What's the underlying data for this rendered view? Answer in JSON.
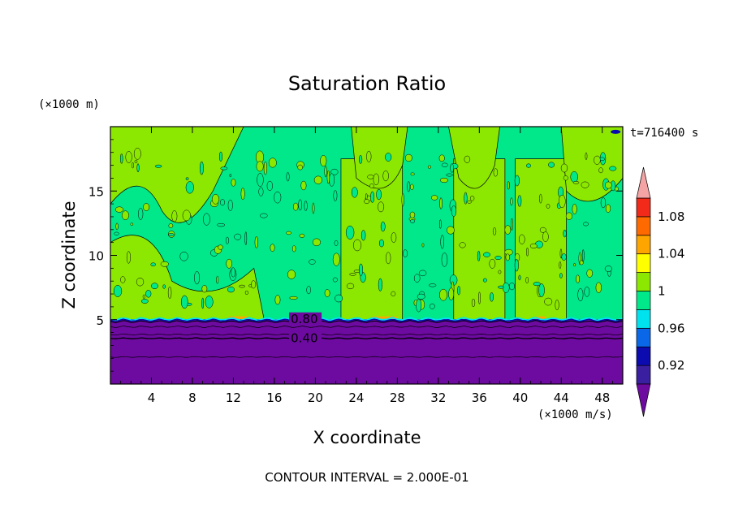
{
  "chart_data": {
    "type": "heatmap",
    "title": "Saturation Ratio",
    "xlabel": "X coordinate",
    "ylabel": "Z coordinate",
    "x_unit": "(×1000 m/s)",
    "y_unit": "(×1000 m)",
    "time_label": "t=716400 s",
    "footnote": "CONTOUR INTERVAL = 2.000E-01",
    "xlim": [
      0,
      50
    ],
    "ylim": [
      0,
      20
    ],
    "x_ticks": [
      4,
      8,
      12,
      16,
      20,
      24,
      28,
      32,
      36,
      40,
      44,
      48
    ],
    "y_ticks": [
      5,
      10,
      15
    ],
    "contour_labels": [
      {
        "text": "0.80",
        "x": 17.6,
        "z": 5.0
      },
      {
        "text": "0.40",
        "x": 17.6,
        "z": 3.5
      }
    ],
    "colorbar": {
      "levels": [
        0.9,
        0.92,
        0.94,
        0.96,
        0.98,
        1.0,
        1.02,
        1.04,
        1.06,
        1.08,
        1.1
      ],
      "tick_labels": [
        "0.92",
        "0.96",
        "1",
        "1.04",
        "1.08"
      ],
      "colors": [
        "#3a1fa0",
        "#0b0bb0",
        "#0a68e8",
        "#00e3ef",
        "#00e88a",
        "#8ce800",
        "#ffff00",
        "#ffa500",
        "#ff6a00",
        "#f22a1a"
      ],
      "under_color": "#6d0aa0",
      "over_color": "#f4a4a4"
    },
    "regions": {
      "lower_layer_value": 0.4,
      "lower_layer_top_z": 5.0,
      "moist_layer_value": 0.99,
      "supersaturated_column_value": 1.01,
      "supersaturated_columns_x": [
        [
          22.5,
          28.5
        ],
        [
          33.5,
          38.5
        ],
        [
          39.5,
          44.5
        ]
      ]
    }
  }
}
